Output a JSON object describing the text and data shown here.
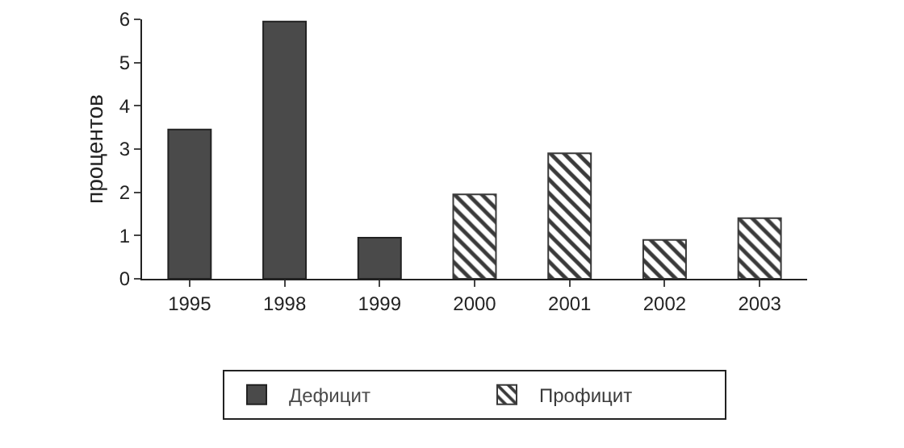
{
  "chart_data": {
    "type": "bar",
    "ylabel": "процентов",
    "categories": [
      "1995",
      "1998",
      "1999",
      "2000",
      "2001",
      "2002",
      "2003"
    ],
    "series": [
      {
        "name": "Дефицит",
        "color": "#4a4a4a",
        "values": [
          3.45,
          5.95,
          0.95,
          null,
          null,
          null,
          null
        ]
      },
      {
        "name": "Профицит",
        "color": "#3a3a3a",
        "values": [
          null,
          null,
          null,
          1.95,
          2.9,
          0.9,
          1.4
        ]
      }
    ],
    "ylim": [
      0,
      6
    ],
    "yticks": [
      0,
      1,
      2,
      3,
      4,
      5,
      6
    ],
    "grid": false,
    "legend": "bottom"
  }
}
